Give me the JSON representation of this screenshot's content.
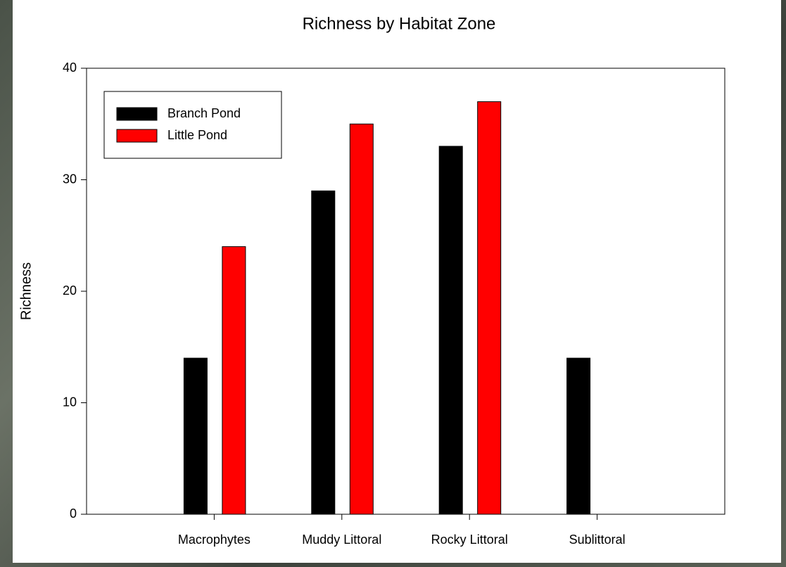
{
  "chart_data": {
    "type": "bar",
    "title": "Richness by Habitat Zone",
    "y_label": "Richness",
    "categories": [
      "Macrophytes",
      "Muddy Littoral",
      "Rocky Littoral",
      "Sublittoral"
    ],
    "series": [
      {
        "name": "Branch Pond",
        "color": "#000000",
        "values": [
          14,
          29,
          33,
          14
        ]
      },
      {
        "name": "Little Pond",
        "color": "#ff0000",
        "values": [
          24,
          35,
          37,
          null
        ]
      }
    ],
    "ylim": [
      0,
      40
    ],
    "yticks": [
      0,
      10,
      20,
      30,
      40
    ],
    "grid": false,
    "legend": "upper left"
  }
}
